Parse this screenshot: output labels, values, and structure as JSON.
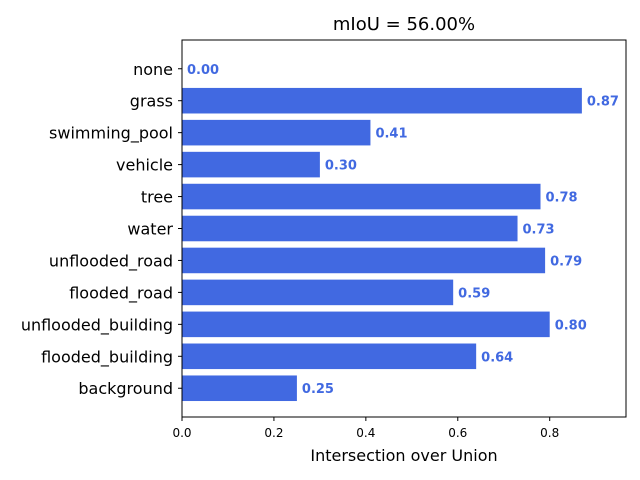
{
  "chart_data": {
    "type": "bar",
    "orientation": "horizontal",
    "title": "mIoU = 56.00%",
    "xlabel": "Intersection over Union",
    "ylabel": "",
    "categories": [
      "none",
      "grass",
      "swimming_pool",
      "vehicle",
      "tree",
      "water",
      "unflooded_road",
      "flooded_road",
      "unflooded_building",
      "flooded_building",
      "background"
    ],
    "values": [
      0.0,
      0.87,
      0.41,
      0.3,
      0.78,
      0.73,
      0.79,
      0.59,
      0.8,
      0.64,
      0.25
    ],
    "value_labels": [
      "0.00",
      "0.87",
      "0.41",
      "0.30",
      "0.78",
      "0.73",
      "0.79",
      "0.59",
      "0.80",
      "0.64",
      "0.25"
    ],
    "xlim": [
      0,
      0.966
    ],
    "xticks": [
      0.0,
      0.2,
      0.4,
      0.6,
      0.8
    ],
    "xtick_labels": [
      "0.0",
      "0.2",
      "0.4",
      "0.6",
      "0.8"
    ],
    "bar_color": "#4169E1",
    "label_color": "#4169E1",
    "grid": false
  }
}
